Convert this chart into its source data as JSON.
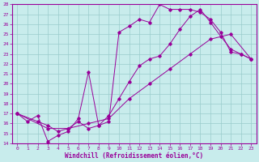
{
  "xlabel": "Windchill (Refroidissement éolien,°C)",
  "bg_color": "#c8ecec",
  "line_color": "#990099",
  "grid_color": "#99cccc",
  "xlim": [
    -0.5,
    23.5
  ],
  "ylim": [
    14,
    28
  ],
  "xticks": [
    0,
    1,
    2,
    3,
    4,
    5,
    6,
    7,
    8,
    9,
    10,
    11,
    12,
    13,
    14,
    15,
    16,
    17,
    18,
    19,
    20,
    21,
    22,
    23
  ],
  "yticks": [
    14,
    15,
    16,
    17,
    18,
    19,
    20,
    21,
    22,
    23,
    24,
    25,
    26,
    27,
    28
  ],
  "line1_x": [
    0,
    1,
    2,
    3,
    4,
    5,
    6,
    7,
    8,
    9,
    10,
    11,
    12,
    13,
    14,
    15,
    16,
    17,
    18,
    19,
    20,
    21,
    22,
    23
  ],
  "line1_y": [
    17,
    16.2,
    16.8,
    14.2,
    14.8,
    15.2,
    16.5,
    21.2,
    15.8,
    16.2,
    25.2,
    25.8,
    26.5,
    26.2,
    28.0,
    27.5,
    27.5,
    27.5,
    27.2,
    26.5,
    25.2,
    23.2,
    23.0,
    22.5
  ],
  "line2_x": [
    0,
    2,
    3,
    4,
    5,
    6,
    7,
    8,
    9,
    10,
    11,
    12,
    13,
    14,
    15,
    16,
    17,
    18,
    19,
    20,
    21,
    22,
    23
  ],
  "line2_y": [
    17,
    16.2,
    15.8,
    15.2,
    15.5,
    16.2,
    15.5,
    15.8,
    16.8,
    18.5,
    20.2,
    21.8,
    22.5,
    22.8,
    24.0,
    25.5,
    26.8,
    27.5,
    26.2,
    24.8,
    23.5,
    23.0,
    22.5
  ],
  "line3_x": [
    0,
    3,
    5,
    7,
    9,
    11,
    13,
    15,
    17,
    19,
    21,
    23
  ],
  "line3_y": [
    17,
    15.5,
    15.5,
    16.0,
    16.5,
    18.5,
    20.0,
    21.5,
    23.0,
    24.5,
    25.0,
    22.5
  ]
}
